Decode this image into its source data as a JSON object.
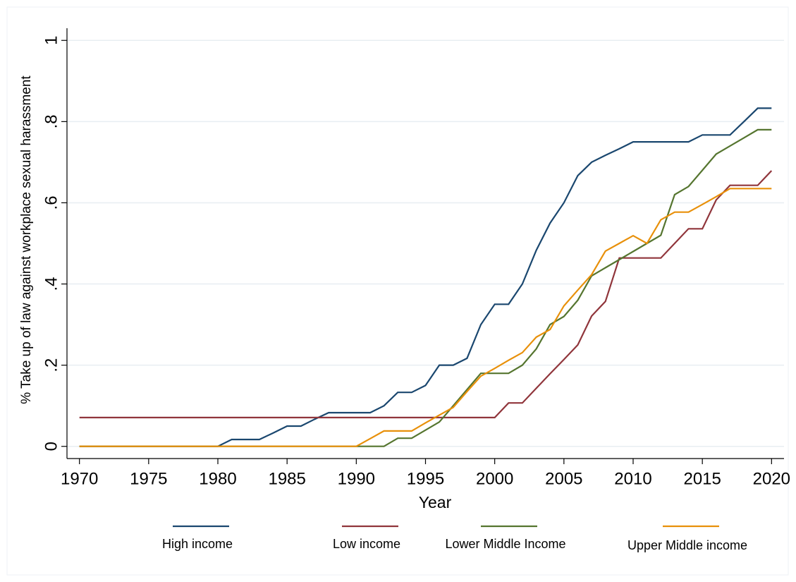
{
  "chart_data": {
    "type": "line",
    "ylabel": "% Take up of law against workplace sexual harassment",
    "xlabel": "Year",
    "x": [
      1970,
      1971,
      1972,
      1973,
      1974,
      1975,
      1976,
      1977,
      1978,
      1979,
      1980,
      1981,
      1982,
      1983,
      1984,
      1985,
      1986,
      1987,
      1988,
      1989,
      1990,
      1991,
      1992,
      1993,
      1994,
      1995,
      1996,
      1997,
      1998,
      1999,
      2000,
      2001,
      2002,
      2003,
      2004,
      2005,
      2006,
      2007,
      2008,
      2009,
      2010,
      2011,
      2012,
      2013,
      2014,
      2015,
      2016,
      2017,
      2018,
      2019,
      2020
    ],
    "xlim": [
      1969.1,
      2020.9
    ],
    "xticks": [
      1970,
      1975,
      1980,
      1985,
      1990,
      1995,
      2000,
      2005,
      2010,
      2015,
      2020
    ],
    "ylim": [
      -0.03,
      1.03
    ],
    "yticks": [
      0,
      {
        "value": 0.2,
        "label": ".2"
      },
      {
        "value": 0.4,
        "label": ".4"
      },
      {
        "value": 0.6,
        "label": ".6"
      },
      {
        "value": 0.8,
        "label": ".8"
      },
      1
    ],
    "grid": true,
    "legend": "bottom",
    "series": [
      {
        "name": "High income",
        "color": "#1a476f",
        "values": [
          0,
          0,
          0,
          0,
          0,
          0,
          0,
          0,
          0,
          0,
          0,
          0.017,
          0.017,
          0.017,
          0.033,
          0.05,
          0.05,
          0.067,
          0.083,
          0.083,
          0.083,
          0.083,
          0.1,
          0.133,
          0.133,
          0.15,
          0.2,
          0.2,
          0.217,
          0.3,
          0.35,
          0.35,
          0.4,
          0.483,
          0.55,
          0.6,
          0.667,
          0.7,
          0.717,
          0.733,
          0.75,
          0.75,
          0.75,
          0.75,
          0.75,
          0.767,
          0.767,
          0.767,
          0.8,
          0.833,
          0.833
        ]
      },
      {
        "name": "Low income",
        "color": "#90353b",
        "values": [
          0.071,
          0.071,
          0.071,
          0.071,
          0.071,
          0.071,
          0.071,
          0.071,
          0.071,
          0.071,
          0.071,
          0.071,
          0.071,
          0.071,
          0.071,
          0.071,
          0.071,
          0.071,
          0.071,
          0.071,
          0.071,
          0.071,
          0.071,
          0.071,
          0.071,
          0.071,
          0.071,
          0.071,
          0.071,
          0.071,
          0.071,
          0.107,
          0.107,
          0.143,
          0.179,
          0.214,
          0.25,
          0.321,
          0.357,
          0.464,
          0.464,
          0.464,
          0.464,
          0.5,
          0.536,
          0.536,
          0.607,
          0.643,
          0.643,
          0.643,
          0.679
        ]
      },
      {
        "name": "Lower Middle Income",
        "color": "#55752f",
        "values": [
          0,
          0,
          0,
          0,
          0,
          0,
          0,
          0,
          0,
          0,
          0,
          0,
          0,
          0,
          0,
          0,
          0,
          0,
          0,
          0,
          0,
          0,
          0,
          0.02,
          0.02,
          0.04,
          0.06,
          0.1,
          0.14,
          0.18,
          0.18,
          0.18,
          0.2,
          0.24,
          0.3,
          0.32,
          0.36,
          0.42,
          0.44,
          0.46,
          0.48,
          0.5,
          0.52,
          0.62,
          0.64,
          0.68,
          0.72,
          0.74,
          0.76,
          0.78,
          0.78
        ]
      },
      {
        "name": "Upper Middle income",
        "color": "#e8900a",
        "values": [
          0,
          0,
          0,
          0,
          0,
          0,
          0,
          0,
          0,
          0,
          0,
          0,
          0,
          0,
          0,
          0,
          0,
          0,
          0,
          0,
          0,
          0.019,
          0.038,
          0.038,
          0.038,
          0.058,
          0.077,
          0.096,
          0.135,
          0.173,
          0.192,
          0.212,
          0.231,
          0.269,
          0.288,
          0.346,
          0.385,
          0.423,
          0.481,
          0.5,
          0.519,
          0.5,
          0.558,
          0.577,
          0.577,
          0.596,
          0.615,
          0.635,
          0.635,
          0.635,
          0.635
        ]
      }
    ]
  }
}
